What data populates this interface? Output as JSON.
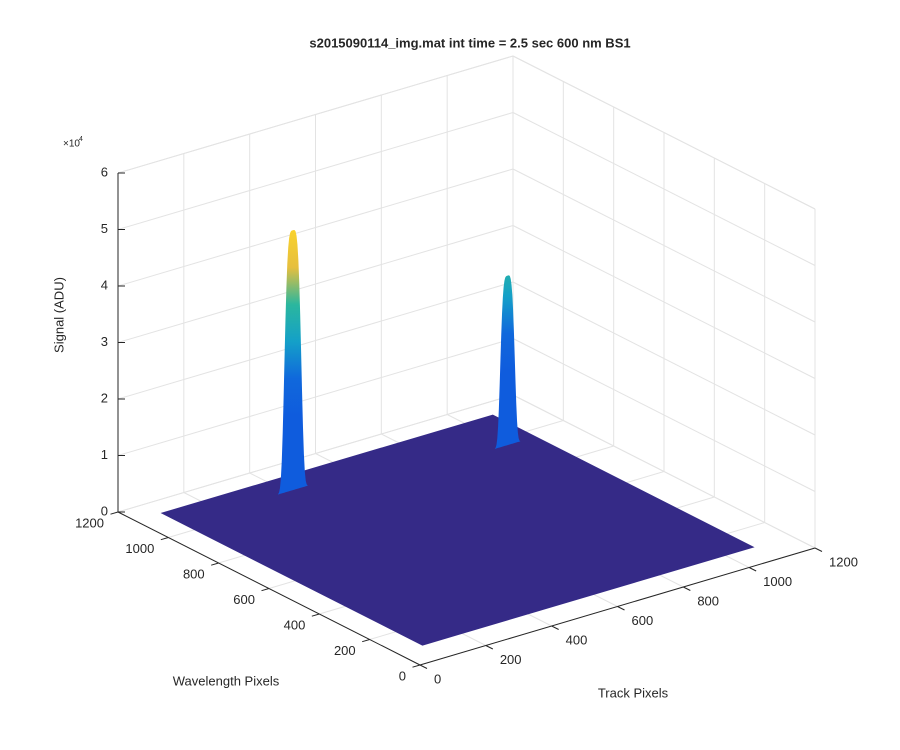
{
  "chart_data": {
    "type": "surface3d",
    "title": "s2015090114_img.mat int time = 2.5 sec  600 nm BS1",
    "xlabel": "Track Pixels",
    "ylabel": "Wavelength Pixels",
    "zlabel": "Signal (ADU)",
    "zexponent": "×10",
    "zexponent_power": "4",
    "xlim": [
      0,
      1200
    ],
    "ylim": [
      0,
      1200
    ],
    "zlim": [
      0,
      60000
    ],
    "xticks": [
      0,
      200,
      400,
      600,
      800,
      1000,
      1200
    ],
    "yticks": [
      0,
      200,
      400,
      600,
      800,
      1000,
      1200
    ],
    "zticks": [
      0,
      {
        "value": 10000,
        "label": "1"
      },
      {
        "value": 20000,
        "label": "2"
      },
      {
        "value": 30000,
        "label": "3"
      },
      {
        "value": 40000,
        "label": "4"
      },
      {
        "value": 50000,
        "label": "5"
      },
      {
        "value": 60000,
        "label": "6"
      }
    ],
    "grid": true,
    "surface": {
      "x": [
        80,
        1085
      ],
      "y": [
        95,
        1130
      ],
      "base": 0,
      "color": "#352a87"
    },
    "peaks": [
      {
        "x": 418,
        "y": 1052,
        "z": 46000,
        "width": 28
      },
      {
        "x": 1000,
        "y": 960,
        "z": 30000,
        "width": 24
      }
    ],
    "colormap": [
      "#0f5cdd",
      "#0f5cdd",
      "#0f5cdd",
      "#1068dc",
      "#14a0c8",
      "#2bb79e",
      "#e6bf3e",
      "#f9d22c"
    ]
  }
}
